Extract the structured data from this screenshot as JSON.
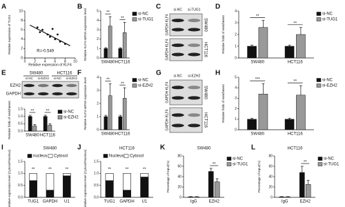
{
  "chart_data": [
    {
      "type": "scatter",
      "label": "A",
      "xlabel": "Relative expression of KLF4",
      "ylabel": "Relative expression of TUG1",
      "annotation": "R=-0.549",
      "x": [
        2.5,
        3,
        3.5,
        4.5,
        5,
        5.5,
        6,
        6.5,
        7,
        8
      ],
      "y": [
        6.5,
        5.5,
        6,
        5,
        4.5,
        6.2,
        4,
        5,
        3.5,
        3
      ],
      "color": "#111",
      "fit": {
        "x": [
          1,
          9
        ],
        "y": [
          7,
          2.6
        ]
      },
      "xlim": [
        0,
        10
      ],
      "xticks": [
        0,
        2,
        4,
        6,
        8,
        10
      ],
      "ylim": [
        0,
        10
      ],
      "yticks": [
        0,
        2,
        4,
        6,
        8,
        10
      ]
    },
    {
      "type": "bar",
      "label": "B",
      "ylabel": "Relative KLF4 mRNA expression level",
      "categories": [
        "SW480",
        "HCT116"
      ],
      "series": [
        {
          "name": "si-NC",
          "color": "#111",
          "values": [
            1,
            1
          ],
          "errors": [
            0.1,
            0.1
          ]
        },
        {
          "name": "si-TUG1",
          "color": "#999",
          "values": [
            3.4,
            2.7
          ],
          "errors": [
            1,
            1.1
          ]
        }
      ],
      "significance": [
        "**",
        "**"
      ],
      "legend": "right",
      "ylim": [
        0,
        5
      ],
      "yticks": [
        0,
        1,
        2,
        3,
        4,
        5
      ]
    },
    {
      "type": "bar",
      "label": "D",
      "ylabel": "Relative folds of enrichment",
      "categories": [
        "SW480",
        "HCT116"
      ],
      "series": [
        {
          "name": "si-NC",
          "color": "#111",
          "values": [
            1,
            1
          ],
          "errors": [
            0.1,
            0.1
          ]
        },
        {
          "name": "si-TUG1",
          "color": "#999",
          "values": [
            2.6,
            2
          ],
          "errors": [
            0.6,
            0.6
          ]
        }
      ],
      "significance": [
        "**",
        "**"
      ],
      "legend": "right",
      "ylim": [
        0,
        4
      ],
      "yticks": [
        0,
        1,
        2,
        3,
        4
      ]
    },
    {
      "type": "bar",
      "ylabel": "Relative folds of enrichment",
      "categories": [
        "SW480",
        "HCT116"
      ],
      "series": [
        {
          "name": "si-NC",
          "color": "#111",
          "values": [
            1,
            1
          ],
          "errors": [
            0.08,
            0.08
          ]
        },
        {
          "name": "si-EZH2",
          "color": "#999",
          "values": [
            0.35,
            0.4
          ],
          "errors": [
            0.1,
            0.1
          ]
        }
      ],
      "significance": [
        "**",
        "**"
      ],
      "legend": "right",
      "ylim": [
        0,
        1.5
      ],
      "yticks": [
        {
          "value": 0,
          "label": "0.0"
        },
        0.5,
        {
          "value": 1,
          "label": "1.0"
        },
        1.5
      ]
    },
    {
      "type": "bar",
      "label": "F",
      "ylabel": "Relative KLF4 mRNA expression level",
      "categories": [
        "SW480",
        "HCT116"
      ],
      "series": [
        {
          "name": "si-NC",
          "color": "#111",
          "values": [
            1,
            1
          ],
          "errors": [
            0.1,
            0.1
          ]
        },
        {
          "name": "si-EZH2",
          "color": "#999",
          "values": [
            2.6,
            2.4
          ],
          "errors": [
            0.9,
            0.8
          ]
        }
      ],
      "significance": [
        "**",
        "**"
      ],
      "legend": "right",
      "ylim": [
        0,
        4
      ],
      "yticks": [
        0,
        1,
        2,
        3,
        4
      ]
    },
    {
      "type": "bar",
      "label": "H",
      "ylabel": "Relative folds of enrichment",
      "categories": [
        "SW480",
        "HCT116"
      ],
      "series": [
        {
          "name": "si-NC",
          "color": "#111",
          "values": [
            1,
            1
          ],
          "errors": [
            0.1,
            0.1
          ]
        },
        {
          "name": "si-EZH2",
          "color": "#999",
          "values": [
            3.4,
            3.3
          ],
          "errors": [
            1,
            0.9
          ]
        }
      ],
      "significance": [
        "***",
        "**"
      ],
      "legend": "right",
      "ylim": [
        0,
        5
      ],
      "yticks": [
        0,
        1,
        2,
        3,
        4,
        5
      ]
    },
    {
      "type": "stacked",
      "label": "I",
      "title": "SW480",
      "ylabel": "Relative expression level (Cytosol/Nucleus)",
      "categories": [
        "TUG1",
        "GAPDH",
        "U1"
      ],
      "series": [
        {
          "name": "nucleus",
          "color": "#111",
          "values": [
            0.7,
            0.3,
            0.9
          ]
        },
        {
          "name": "Cytosol",
          "color": "#fff",
          "values": [
            0.3,
            0.7,
            0.1
          ]
        }
      ],
      "significance": [
        "**",
        "**",
        "**"
      ],
      "legend": "top",
      "ylim": [
        0,
        1.5
      ],
      "yticks": [
        {
          "value": 0,
          "label": "0.0"
        },
        0.5,
        {
          "value": 1,
          "label": "1.0"
        },
        1.5
      ]
    },
    {
      "type": "stacked",
      "label": "J",
      "title": "HCT116",
      "ylabel": "Relative expression level (Cytosol/Nucleus)",
      "categories": [
        "TUG1",
        "GAPDH",
        "U1"
      ],
      "series": [
        {
          "name": "Nucleus",
          "color": "#111",
          "values": [
            0.7,
            0.3,
            0.85
          ]
        },
        {
          "name": "Cytosol",
          "color": "#fff",
          "values": [
            0.3,
            0.7,
            0.15
          ]
        }
      ],
      "significance": [
        "**",
        "**",
        "**"
      ],
      "legend": "top",
      "ylim": [
        0,
        1.5
      ],
      "yticks": [
        {
          "value": 0,
          "label": "0.0"
        },
        0.5,
        {
          "value": 1,
          "label": "1.0"
        },
        1.5
      ]
    },
    {
      "type": "bar",
      "label": "K",
      "title": "SW480",
      "ylabel": "Percentage of Input(%)",
      "categories": [
        "IgG",
        "EZH2"
      ],
      "series": [
        {
          "name": "si-NC",
          "color": "#111",
          "values": [
            1,
            50
          ],
          "errors": [
            0.5,
            6
          ]
        },
        {
          "name": "si-TUG1",
          "color": "#999",
          "values": [
            1,
            30
          ],
          "errors": [
            0.5,
            6
          ]
        }
      ],
      "significance": [
        "",
        "**"
      ],
      "legend": "right",
      "ylim": [
        0,
        80
      ],
      "yticks": [
        0,
        20,
        40,
        60,
        80
      ]
    },
    {
      "type": "bar",
      "label": "L",
      "title": "HCT116",
      "ylabel": "Percentage of Input(%)",
      "categories": [
        "IgG",
        "EZH2"
      ],
      "series": [
        {
          "name": "si-NC",
          "color": "#111",
          "values": [
            1,
            48
          ],
          "errors": [
            0.5,
            12
          ]
        },
        {
          "name": "si-TUG1",
          "color": "#999",
          "values": [
            1,
            25
          ],
          "errors": [
            0.5,
            8
          ]
        }
      ],
      "significance": [
        "",
        "**"
      ],
      "legend": "right",
      "ylim": [
        0,
        80
      ],
      "yticks": [
        0,
        20,
        40,
        60,
        80
      ]
    }
  ],
  "blots": [
    {
      "label": "C",
      "lanes": [
        "si-NC",
        "si-TUG1"
      ],
      "bands": [
        "GAPDH KLF4",
        "GAPDH KLF4"
      ],
      "cells": [
        "SW480",
        "HCT116"
      ]
    },
    {
      "label": "E",
      "cells": [
        "SW480",
        "HCT116"
      ],
      "lanes": [
        "si-NC",
        "si-EZH2",
        "si-NC",
        "si-EZH2"
      ],
      "bands": [
        "EZH2",
        "GAPDH"
      ]
    },
    {
      "label": "G",
      "lanes": [
        "si-NC",
        "si-EZH2"
      ],
      "bands": [
        "GAPDH KLF4",
        "GAPDH KLF4"
      ],
      "cells": [
        "SW480",
        "HCT116"
      ]
    }
  ]
}
